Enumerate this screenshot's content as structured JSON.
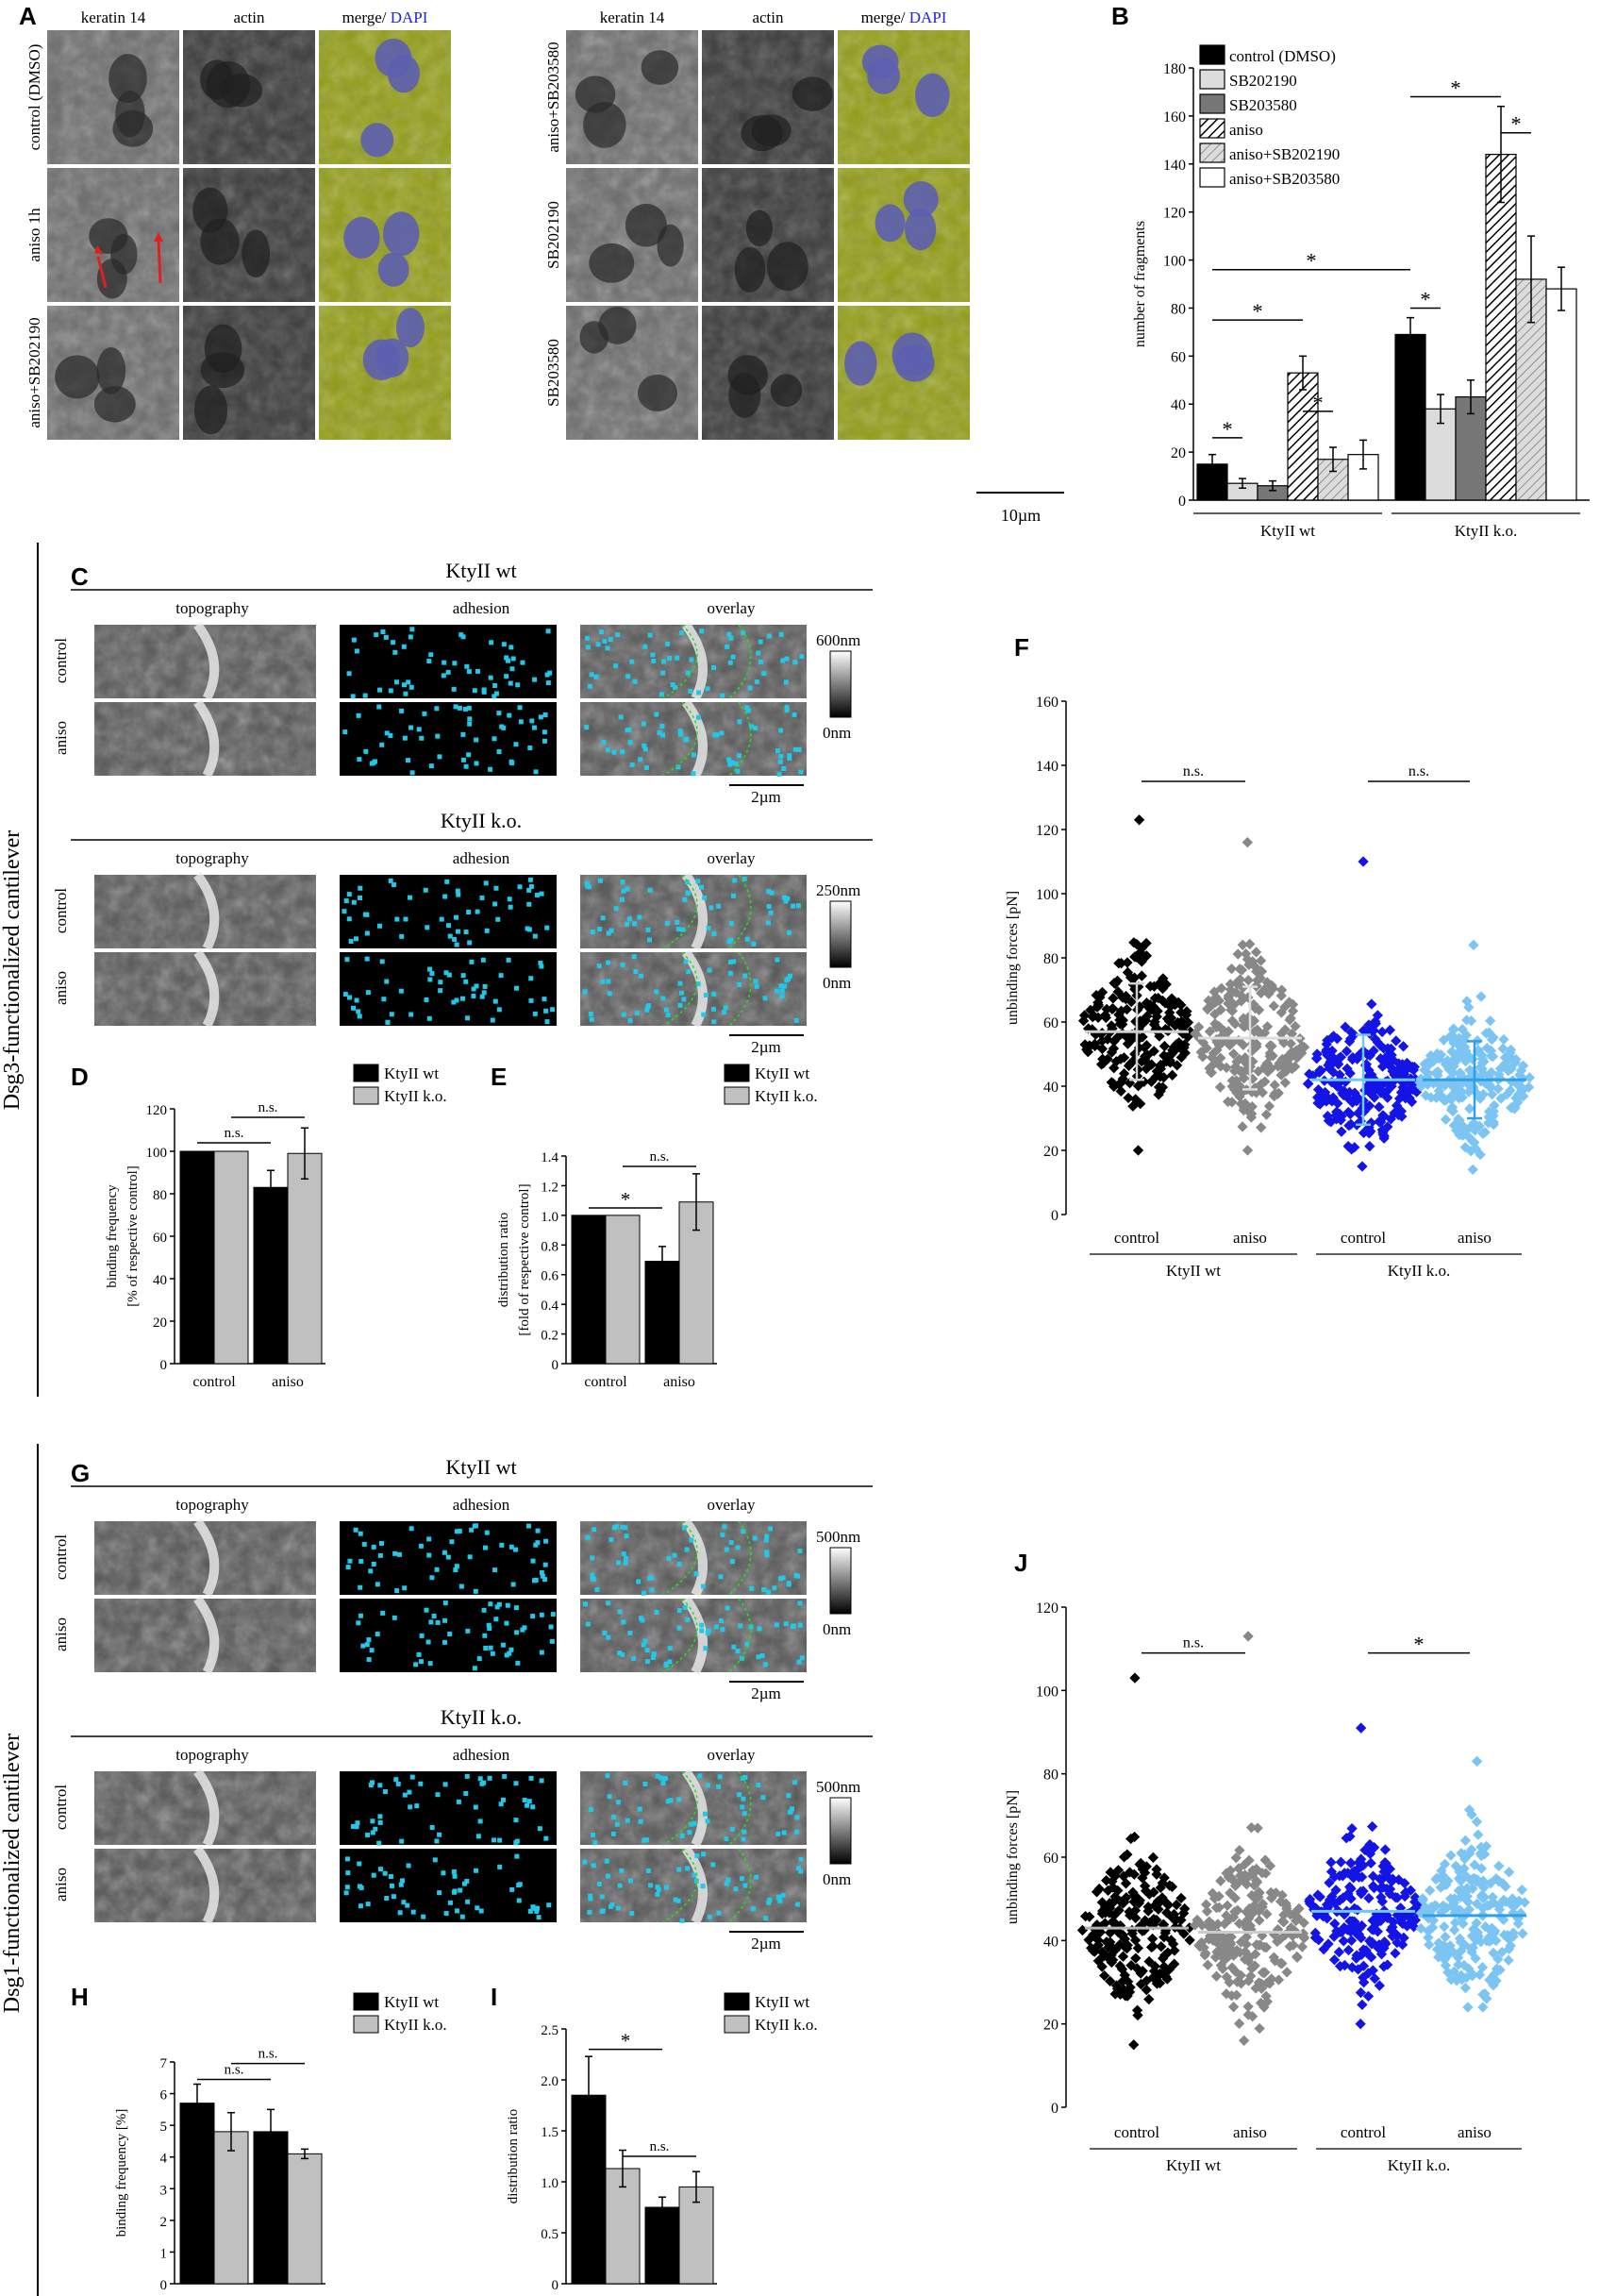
{
  "panel_letters": {
    "A": "A",
    "B": "B",
    "C": "C",
    "D": "D",
    "E": "E",
    "F": "F",
    "G": "G",
    "H": "H",
    "I": "I",
    "J": "J"
  },
  "panel_A": {
    "left_headers": [
      "keratin 14",
      "actin",
      "merge/ ",
      "DAPI"
    ],
    "right_headers": [
      "keratin 14",
      "actin",
      "merge/ ",
      "DAPI"
    ],
    "left_rows": [
      "control (DMSO)",
      "aniso 1h",
      "aniso+SB202190"
    ],
    "right_rows": [
      "aniso+SB203580",
      "SB202190",
      "SB203580"
    ],
    "scale": "10µm",
    "colors": {
      "keratin": "#b5b51a",
      "actin": "#2fb8b0",
      "dapi": "#2323e6"
    }
  },
  "section_labels": {
    "upper": "Dsg3-functionalized cantilever",
    "lower": "Dsg1-functionalized cantilever"
  },
  "panel_C": {
    "title_wt": "KtyII wt",
    "title_ko": "KtyII k.o.",
    "col_headers": [
      "topography",
      "adhesion",
      "overlay"
    ],
    "rows": [
      "control",
      "aniso"
    ],
    "scale_wt": [
      "600nm",
      "0nm"
    ],
    "scale_ko": [
      "250nm",
      "0nm"
    ],
    "scalebar": "2µm"
  },
  "panel_G": {
    "title_wt": "KtyII wt",
    "title_ko": "KtyII k.o.",
    "col_headers": [
      "topography",
      "adhesion",
      "overlay"
    ],
    "rows": [
      "control",
      "aniso"
    ],
    "scale_wt": [
      "500nm",
      "0nm"
    ],
    "scale_ko": [
      "500nm",
      "0nm"
    ],
    "scalebar": "2µm"
  },
  "chart_data": [
    {
      "id": "B",
      "type": "bar",
      "ylabel": "number of fragments",
      "ylim": [
        0,
        180
      ],
      "yticks": [
        0,
        20,
        40,
        60,
        80,
        100,
        120,
        140,
        160,
        180
      ],
      "groups": [
        "KtyII wt",
        "KtyII k.o."
      ],
      "series": [
        {
          "name": "control (DMSO)",
          "values": [
            15,
            69
          ],
          "err": [
            4,
            7
          ]
        },
        {
          "name": "SB202190",
          "values": [
            7,
            38
          ],
          "err": [
            2,
            6
          ]
        },
        {
          "name": "SB203580",
          "values": [
            6,
            43
          ],
          "err": [
            2,
            7
          ]
        },
        {
          "name": "aniso",
          "values": [
            53,
            144
          ],
          "err": [
            7,
            20
          ]
        },
        {
          "name": "aniso+SB202190",
          "values": [
            17,
            92
          ],
          "err": [
            5,
            18
          ]
        },
        {
          "name": "aniso+SB203580",
          "values": [
            19,
            88
          ],
          "err": [
            6,
            9
          ]
        }
      ],
      "sig": [
        "*",
        "*",
        "*",
        "*",
        "*",
        "*",
        "*"
      ]
    },
    {
      "id": "D",
      "type": "bar",
      "ylabel": [
        "binding frequency",
        "[% of respective control]"
      ],
      "ylim": [
        0,
        120
      ],
      "yticks": [
        0,
        20,
        40,
        60,
        80,
        100,
        120
      ],
      "categories": [
        "control",
        "aniso"
      ],
      "series": [
        {
          "name": "KtyII wt",
          "values": [
            100,
            83
          ],
          "err": [
            0,
            8
          ]
        },
        {
          "name": "KtyII k.o.",
          "values": [
            100,
            99
          ],
          "err": [
            0,
            12
          ]
        }
      ],
      "sig": [
        "n.s.",
        "n.s."
      ]
    },
    {
      "id": "E",
      "type": "bar",
      "ylabel": [
        "distribution ratio",
        "[fold of respective control]"
      ],
      "ylim": [
        0,
        1.4
      ],
      "yticks": [
        "0",
        "0.2",
        "0.4",
        "0.6",
        "0.8",
        "1.0",
        "1.2",
        "1.4"
      ],
      "categories": [
        "control",
        "aniso"
      ],
      "series": [
        {
          "name": "KtyII wt",
          "values": [
            1.0,
            0.69
          ],
          "err": [
            0,
            0.1
          ]
        },
        {
          "name": "KtyII k.o.",
          "values": [
            1.0,
            1.09
          ],
          "err": [
            0,
            0.19
          ]
        }
      ],
      "sig": [
        "*",
        "n.s."
      ]
    },
    {
      "id": "F",
      "type": "scatter",
      "ylabel": "unbinding forces [pN]",
      "ylim": [
        0,
        160
      ],
      "yticks": [
        0,
        20,
        40,
        60,
        80,
        100,
        120,
        140,
        160
      ],
      "categories": [
        "control",
        "aniso",
        "control",
        "aniso"
      ],
      "groups": [
        "KtyII wt",
        "KtyII k.o."
      ],
      "series": [
        {
          "mean": 57,
          "sd": 15,
          "min": 20,
          "max": 123,
          "color": "#000000",
          "line": "#d0d0d0"
        },
        {
          "mean": 55,
          "sd": 16,
          "min": 20,
          "max": 116,
          "color": "#888888",
          "line": "#dddddd"
        },
        {
          "mean": 42,
          "sd": 14,
          "min": 15,
          "max": 110,
          "color": "#1414e6",
          "line": "#6ec8ff"
        },
        {
          "mean": 42,
          "sd": 12,
          "min": 14,
          "max": 84,
          "color": "#7cc4f2",
          "line": "#2da0e8"
        }
      ],
      "sig": [
        "n.s.",
        "n.s."
      ]
    },
    {
      "id": "H",
      "type": "bar",
      "ylabel": "binding frequency [%]",
      "ylim": [
        0,
        7
      ],
      "yticks": [
        0,
        1,
        2,
        3,
        4,
        5,
        6,
        7
      ],
      "categories": [
        "control",
        "aniso"
      ],
      "series": [
        {
          "name": "KtyII wt",
          "values": [
            5.7,
            4.8
          ],
          "err": [
            0.6,
            0.7
          ]
        },
        {
          "name": "KtyII k.o.",
          "values": [
            4.8,
            4.1
          ],
          "err": [
            0.6,
            0.15
          ]
        }
      ],
      "sig": [
        "n.s.",
        "n.s."
      ]
    },
    {
      "id": "I",
      "type": "bar",
      "ylabel": "distribution ratio",
      "ylim": [
        0,
        2.5
      ],
      "yticks": [
        "0",
        "0.5",
        "1.0",
        "1.5",
        "2.0",
        "2.5"
      ],
      "categories": [
        "control",
        "aniso"
      ],
      "series": [
        {
          "name": "KtyII wt",
          "values": [
            1.85,
            0.75
          ],
          "err": [
            0.38,
            0.1
          ]
        },
        {
          "name": "KtyII k.o.",
          "values": [
            1.13,
            0.95
          ],
          "err": [
            0.18,
            0.15
          ]
        }
      ],
      "sig": [
        "*",
        "n.s."
      ]
    },
    {
      "id": "J",
      "type": "scatter",
      "ylabel": "unbinding forces [pN]",
      "ylim": [
        0,
        120
      ],
      "yticks": [
        0,
        20,
        40,
        60,
        80,
        100,
        120
      ],
      "categories": [
        "control",
        "aniso",
        "control",
        "aniso"
      ],
      "groups": [
        "KtyII wt",
        "KtyII k.o."
      ],
      "series": [
        {
          "mean": 43,
          "min": 15,
          "max": 103,
          "color": "#000000",
          "line": "#b5b5b5"
        },
        {
          "mean": 42,
          "min": 16,
          "max": 113,
          "color": "#888888",
          "line": "#cccccc"
        },
        {
          "mean": 47,
          "min": 20,
          "max": 91,
          "color": "#1414e6",
          "line": "#6ec8ff"
        },
        {
          "mean": 46,
          "min": 24,
          "max": 83,
          "color": "#7cc4f2",
          "line": "#2da0e8"
        }
      ],
      "sig": [
        "n.s.",
        "*"
      ]
    }
  ]
}
